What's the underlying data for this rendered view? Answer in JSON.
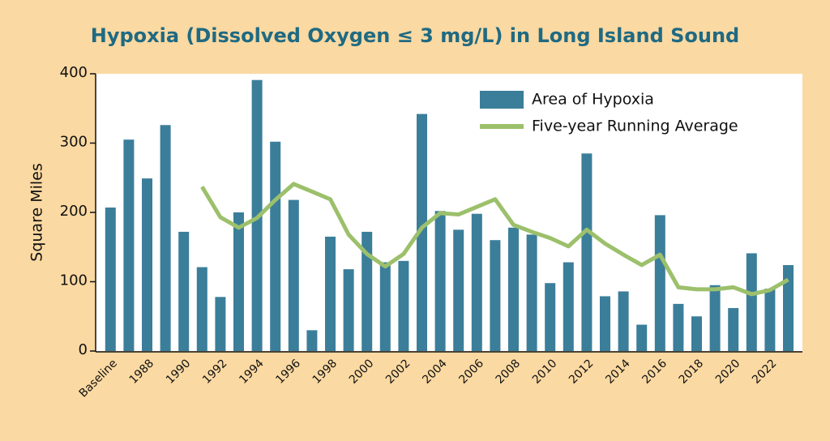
{
  "chart_data": {
    "type": "bar",
    "title": "Hypoxia (Dissolved Oxygen ≤ 3 mg/L) in Long Island Sound",
    "y_label": "Square Miles",
    "categories": [
      "Baseline",
      null,
      "1988",
      null,
      "1990",
      null,
      "1992",
      null,
      "1994",
      null,
      "1996",
      null,
      "1998",
      null,
      "2000",
      null,
      "2002",
      null,
      "2004",
      null,
      "2006",
      null,
      "2008",
      null,
      "2010",
      null,
      "2012",
      null,
      "2014",
      null,
      "2016",
      null,
      "2018",
      null,
      "2020",
      null,
      "2022",
      null
    ],
    "series": [
      {
        "name": "Area of Hypoxia",
        "type": "bar",
        "color": "#3b7e9a",
        "values": [
          207,
          305,
          249,
          326,
          172,
          121,
          78,
          200,
          391,
          302,
          218,
          30,
          165,
          118,
          172,
          128,
          130,
          342,
          202,
          175,
          198,
          160,
          178,
          168,
          98,
          128,
          285,
          79,
          86,
          38,
          196,
          68,
          50,
          95,
          62,
          141,
          90,
          124
        ]
      },
      {
        "name": "Five-year Running Average",
        "type": "line",
        "color": "#9cc06b",
        "values": [
          null,
          null,
          null,
          null,
          null,
          237,
          193,
          178,
          192,
          218,
          241,
          230,
          219,
          168,
          140,
          122,
          140,
          178,
          199,
          197,
          208,
          219,
          182,
          172,
          163,
          151,
          175,
          155,
          139,
          124,
          139,
          92,
          89,
          89,
          92,
          82,
          88,
          103
        ]
      }
    ],
    "ylim": [
      0,
      400
    ],
    "yticks": [
      0,
      100,
      200,
      300,
      400
    ],
    "grid": false,
    "legend": "top-right"
  }
}
